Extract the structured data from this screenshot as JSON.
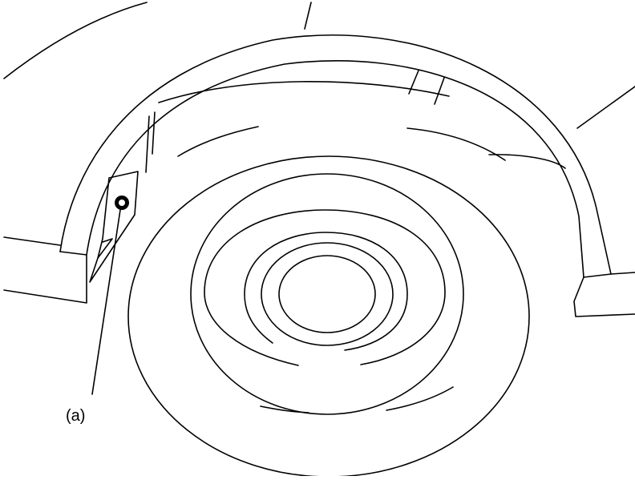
{
  "diagram": {
    "callouts": [
      {
        "label": "(a)",
        "target": "wheel-arch-liner-fastener"
      }
    ],
    "line_color": "#000000",
    "background": "#ffffff"
  }
}
